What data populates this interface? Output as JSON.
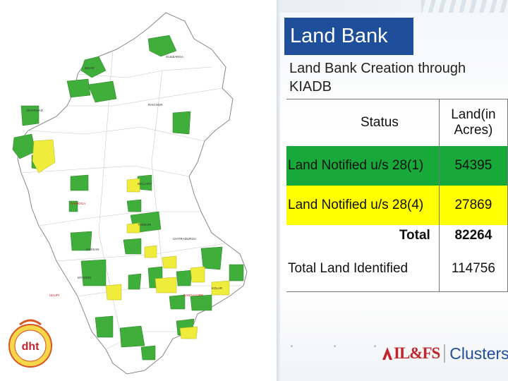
{
  "slide": {
    "title": "Land Bank",
    "subtitle": "Land Bank Creation through KIADB"
  },
  "table": {
    "headers": [
      "Status",
      "Land(in Acres)"
    ],
    "rows": [
      {
        "status": "Land Notified u/s 28(1)",
        "acres": "54395",
        "highlight": "#17a93a"
      },
      {
        "status": "Land Notified u/s 28(4)",
        "acres": "27869",
        "highlight": "#ffff00"
      },
      {
        "status": "Total",
        "acres": "82264"
      },
      {
        "status": "Total Land Identified",
        "acres": "114756"
      }
    ]
  },
  "footer": {
    "brand_left": "IL&FS",
    "brand_right": "Clusters",
    "logo_text": "dht"
  },
  "map": {
    "region_colors": {
      "notified_28_1": "#3fae3a",
      "notified_28_4": "#f0ec3c",
      "base": "#ffffff",
      "border": "#888888"
    },
    "labels": [
      "GULBARGA",
      "BIDAR",
      "DHARWAD",
      "BELLARY",
      "RAICHUR",
      "MYSORE",
      "KOLAR",
      "HASSAN",
      "TUMKUR",
      "CHITRADURGA",
      "SHIMOGA",
      "UDUPI",
      "BANGALORE"
    ]
  },
  "colors": {
    "title_bg": "#1f4e9b",
    "accent_red": "#c0262d",
    "brand_blue": "#1f4e9b"
  }
}
